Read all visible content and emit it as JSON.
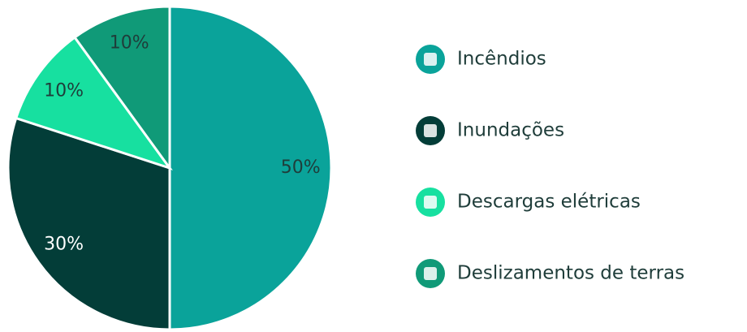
{
  "chart_data": {
    "type": "pie",
    "categories": [
      "Incêndios",
      "Inundações",
      "Descargas elétricas",
      "Deslizamentos de terras"
    ],
    "values": [
      50,
      30,
      10,
      10
    ],
    "value_labels": [
      "50%",
      "30%",
      "10%",
      "10%"
    ],
    "colors": [
      "#0aa39a",
      "#033d38",
      "#17e0a0",
      "#109a78"
    ],
    "legend": "right"
  }
}
